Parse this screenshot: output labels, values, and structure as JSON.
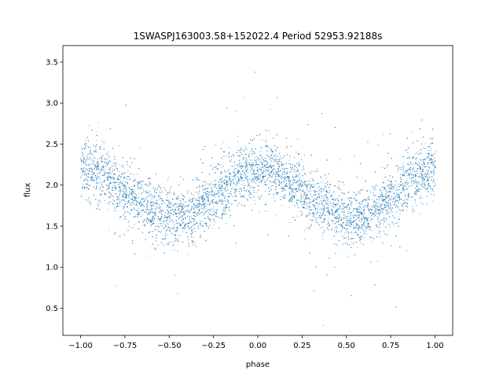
{
  "chart_data": {
    "type": "scatter",
    "title": "1SWASPJ163003.58+152022.4 Period 52953.92188s",
    "xlabel": "phase",
    "ylabel": "flux",
    "xlim": [
      -1.1,
      1.1
    ],
    "ylim": [
      0.17,
      3.7
    ],
    "x_ticks": [
      -1.0,
      -0.75,
      -0.5,
      -0.25,
      0.0,
      0.25,
      0.5,
      0.75,
      1.0
    ],
    "x_tick_labels": [
      "−1.00",
      "−0.75",
      "−0.50",
      "−0.25",
      "0.00",
      "0.25",
      "0.50",
      "0.75",
      "1.00"
    ],
    "y_ticks": [
      0.5,
      1.0,
      1.5,
      2.0,
      2.5,
      3.0,
      3.5
    ],
    "y_tick_labels": [
      "0.5",
      "1.0",
      "1.5",
      "2.0",
      "2.5",
      "3.0",
      "3.5"
    ],
    "grid": false,
    "legend": "none",
    "marker_color": "#1f77b4",
    "series": [
      {
        "phase": [
          -1.0,
          -0.9,
          -0.8,
          -0.7,
          -0.6,
          -0.5,
          -0.45,
          -0.4,
          -0.3,
          -0.2,
          -0.1,
          0.0,
          0.05,
          0.1,
          0.2,
          0.3,
          0.4,
          0.5,
          0.55,
          0.6,
          0.7,
          0.8,
          0.9,
          1.0
        ],
        "flux_median": [
          2.2,
          2.15,
          2.0,
          1.85,
          1.72,
          1.63,
          1.6,
          1.62,
          1.75,
          1.95,
          2.12,
          2.2,
          2.2,
          2.15,
          2.0,
          1.85,
          1.72,
          1.63,
          1.6,
          1.62,
          1.75,
          1.95,
          2.12,
          2.2
        ]
      }
    ]
  }
}
